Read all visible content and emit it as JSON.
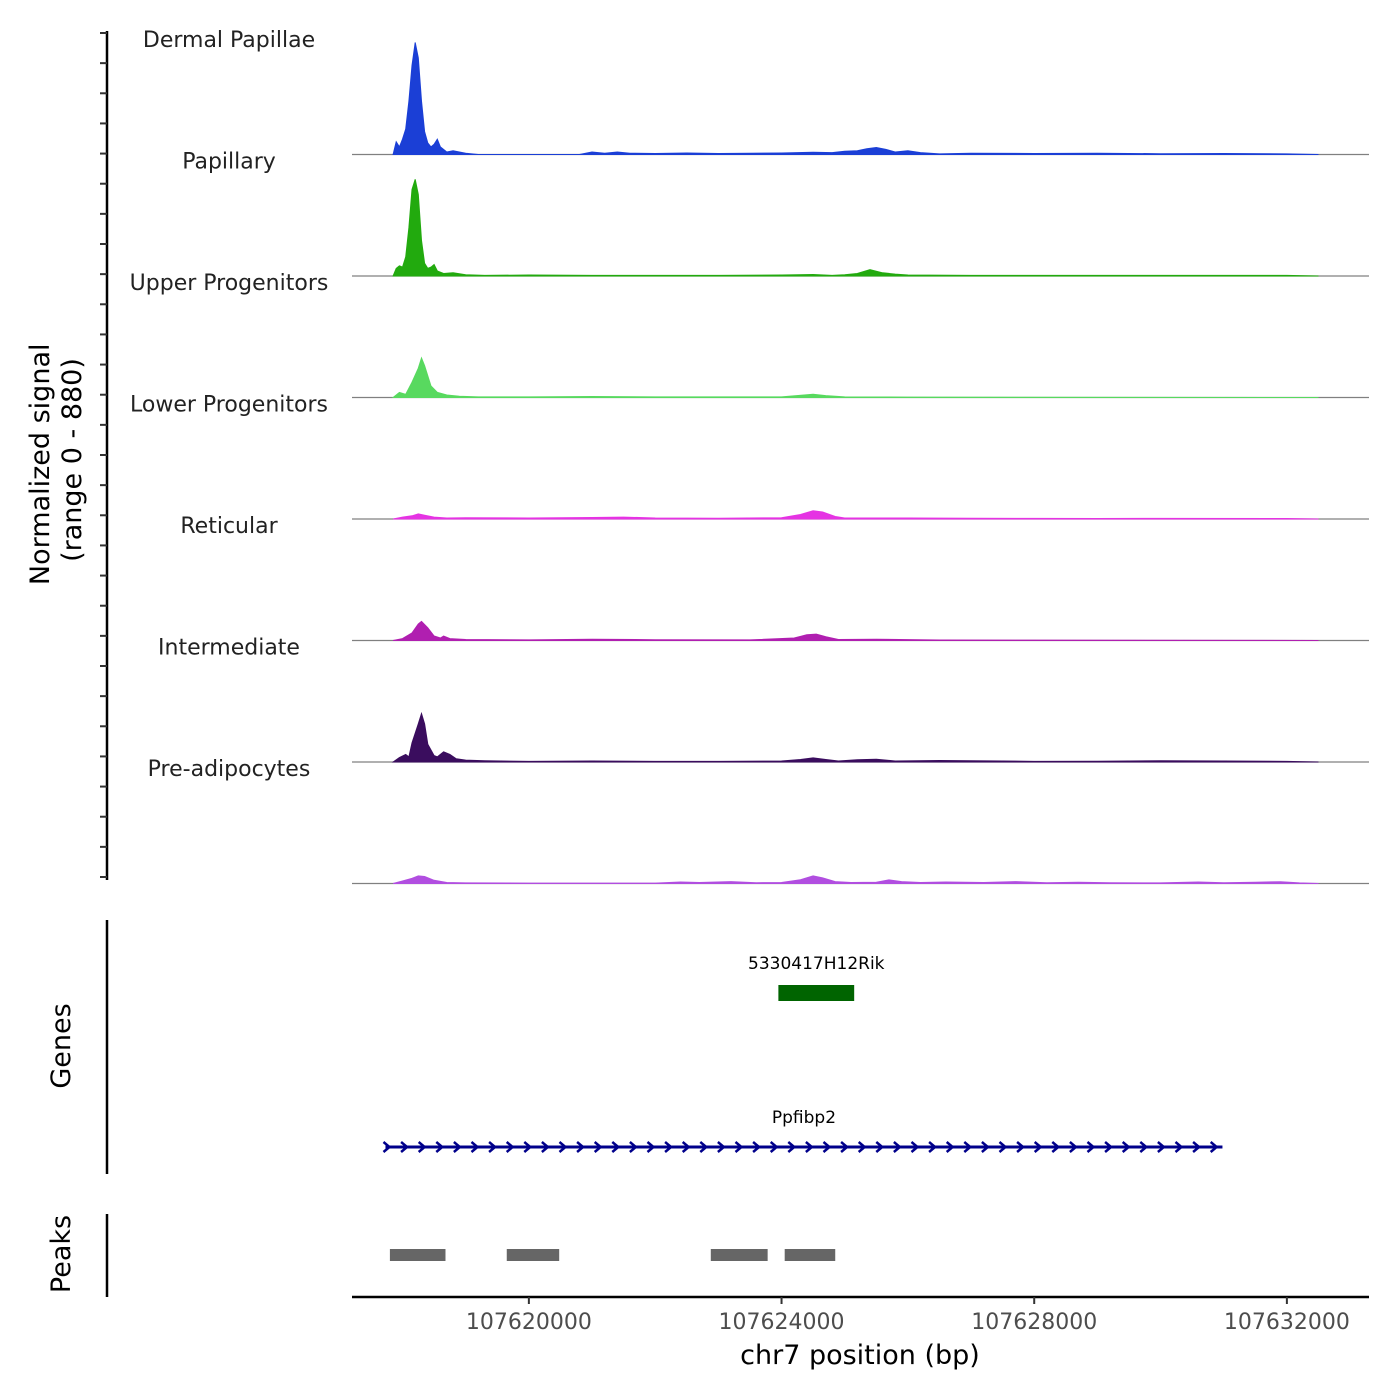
{
  "chart_data": {
    "type": "area",
    "title": "",
    "ylabel": "Normalized signal\n(range 0 - 880)",
    "ylabel_lines": [
      "Normalized signal",
      "(range 0 - 880)"
    ],
    "y_range": [
      0,
      880
    ],
    "xlabel": "chr7 position (bp)",
    "xlim": [
      107617200,
      107633300
    ],
    "x_ticks": [
      107620000,
      107624000,
      107628000,
      107632000
    ],
    "x_tick_labels": [
      "107620000",
      "107624000",
      "107628000",
      "107632000"
    ],
    "series": [
      {
        "name": "Dermal Papillae",
        "color": "#1b3fd6",
        "points": [
          [
            107617850,
            0
          ],
          [
            107617900,
            100
          ],
          [
            107617950,
            60
          ],
          [
            107618000,
            120
          ],
          [
            107618050,
            200
          ],
          [
            107618100,
            420
          ],
          [
            107618150,
            700
          ],
          [
            107618200,
            880
          ],
          [
            107618250,
            760
          ],
          [
            107618300,
            420
          ],
          [
            107618350,
            180
          ],
          [
            107618400,
            90
          ],
          [
            107618450,
            60
          ],
          [
            107618500,
            80
          ],
          [
            107618550,
            120
          ],
          [
            107618600,
            60
          ],
          [
            107618700,
            20
          ],
          [
            107618800,
            30
          ],
          [
            107619000,
            10
          ],
          [
            107619200,
            0
          ],
          [
            107620800,
            0
          ],
          [
            107621000,
            20
          ],
          [
            107621200,
            10
          ],
          [
            107621400,
            20
          ],
          [
            107621600,
            10
          ],
          [
            107622000,
            8
          ],
          [
            107622500,
            12
          ],
          [
            107623000,
            8
          ],
          [
            107623500,
            10
          ],
          [
            107624000,
            12
          ],
          [
            107624500,
            18
          ],
          [
            107624800,
            15
          ],
          [
            107625000,
            25
          ],
          [
            107625200,
            30
          ],
          [
            107625350,
            45
          ],
          [
            107625500,
            55
          ],
          [
            107625650,
            40
          ],
          [
            107625800,
            20
          ],
          [
            107626000,
            30
          ],
          [
            107626200,
            15
          ],
          [
            107626500,
            5
          ],
          [
            107627000,
            10
          ],
          [
            107628000,
            8
          ],
          [
            107629000,
            10
          ],
          [
            107630000,
            6
          ],
          [
            107631000,
            8
          ],
          [
            107632000,
            5
          ],
          [
            107632500,
            0
          ]
        ]
      },
      {
        "name": "Papillary",
        "color": "#22aa0e",
        "points": [
          [
            107617850,
            0
          ],
          [
            107617900,
            60
          ],
          [
            107617950,
            80
          ],
          [
            107618000,
            70
          ],
          [
            107618050,
            150
          ],
          [
            107618100,
            380
          ],
          [
            107618150,
            680
          ],
          [
            107618200,
            760
          ],
          [
            107618250,
            640
          ],
          [
            107618300,
            280
          ],
          [
            107618350,
            100
          ],
          [
            107618400,
            60
          ],
          [
            107618450,
            70
          ],
          [
            107618500,
            90
          ],
          [
            107618550,
            40
          ],
          [
            107618650,
            20
          ],
          [
            107618800,
            25
          ],
          [
            107619000,
            10
          ],
          [
            107619300,
            5
          ],
          [
            107620000,
            8
          ],
          [
            107621000,
            5
          ],
          [
            107622000,
            5
          ],
          [
            107623000,
            5
          ],
          [
            107624000,
            8
          ],
          [
            107624500,
            12
          ],
          [
            107624800,
            5
          ],
          [
            107625000,
            10
          ],
          [
            107625200,
            20
          ],
          [
            107625400,
            50
          ],
          [
            107625600,
            25
          ],
          [
            107625800,
            15
          ],
          [
            107626000,
            8
          ],
          [
            107627000,
            5
          ],
          [
            107628000,
            5
          ],
          [
            107630000,
            5
          ],
          [
            107632000,
            5
          ],
          [
            107632500,
            0
          ]
        ]
      },
      {
        "name": "Upper Progenitors",
        "color": "#58d95f",
        "points": [
          [
            107617850,
            0
          ],
          [
            107617950,
            40
          ],
          [
            107618050,
            25
          ],
          [
            107618150,
            120
          ],
          [
            107618250,
            230
          ],
          [
            107618300,
            310
          ],
          [
            107618350,
            250
          ],
          [
            107618450,
            90
          ],
          [
            107618550,
            40
          ],
          [
            107618700,
            20
          ],
          [
            107618900,
            10
          ],
          [
            107619200,
            5
          ],
          [
            107620000,
            5
          ],
          [
            107621000,
            8
          ],
          [
            107622000,
            5
          ],
          [
            107624000,
            5
          ],
          [
            107624500,
            25
          ],
          [
            107624700,
            15
          ],
          [
            107625000,
            5
          ],
          [
            107626000,
            3
          ],
          [
            107632500,
            0
          ]
        ]
      },
      {
        "name": "Lower Progenitors",
        "color": "#e533e3",
        "points": [
          [
            107617850,
            0
          ],
          [
            107618000,
            15
          ],
          [
            107618150,
            25
          ],
          [
            107618250,
            40
          ],
          [
            107618350,
            30
          ],
          [
            107618500,
            15
          ],
          [
            107618700,
            8
          ],
          [
            107619000,
            10
          ],
          [
            107620000,
            8
          ],
          [
            107621000,
            12
          ],
          [
            107621500,
            15
          ],
          [
            107622000,
            8
          ],
          [
            107623000,
            6
          ],
          [
            107624000,
            10
          ],
          [
            107624300,
            35
          ],
          [
            107624500,
            65
          ],
          [
            107624650,
            55
          ],
          [
            107624850,
            20
          ],
          [
            107625000,
            8
          ],
          [
            107626000,
            8
          ],
          [
            107627000,
            6
          ],
          [
            107628000,
            5
          ],
          [
            107629000,
            4
          ],
          [
            107630000,
            5
          ],
          [
            107632000,
            4
          ],
          [
            107632500,
            0
          ]
        ]
      },
      {
        "name": "Reticular",
        "color": "#b01fb0",
        "points": [
          [
            107617850,
            0
          ],
          [
            107618000,
            15
          ],
          [
            107618150,
            60
          ],
          [
            107618250,
            130
          ],
          [
            107618300,
            150
          ],
          [
            107618400,
            100
          ],
          [
            107618500,
            35
          ],
          [
            107618600,
            20
          ],
          [
            107618650,
            35
          ],
          [
            107618750,
            15
          ],
          [
            107619000,
            8
          ],
          [
            107620000,
            5
          ],
          [
            107621000,
            10
          ],
          [
            107622000,
            6
          ],
          [
            107623500,
            5
          ],
          [
            107624200,
            20
          ],
          [
            107624400,
            45
          ],
          [
            107624550,
            50
          ],
          [
            107624700,
            30
          ],
          [
            107624900,
            8
          ],
          [
            107625500,
            10
          ],
          [
            107626500,
            4
          ],
          [
            107628000,
            3
          ],
          [
            107632500,
            0
          ]
        ]
      },
      {
        "name": "Intermediate",
        "color": "#3a0d5e",
        "points": [
          [
            107617850,
            0
          ],
          [
            107617950,
            35
          ],
          [
            107618050,
            60
          ],
          [
            107618100,
            40
          ],
          [
            107618150,
            150
          ],
          [
            107618250,
            300
          ],
          [
            107618300,
            380
          ],
          [
            107618350,
            300
          ],
          [
            107618400,
            140
          ],
          [
            107618500,
            50
          ],
          [
            107618550,
            40
          ],
          [
            107618650,
            80
          ],
          [
            107618750,
            60
          ],
          [
            107618850,
            25
          ],
          [
            107619000,
            15
          ],
          [
            107619300,
            10
          ],
          [
            107620000,
            5
          ],
          [
            107621000,
            8
          ],
          [
            107622000,
            5
          ],
          [
            107623000,
            5
          ],
          [
            107624000,
            8
          ],
          [
            107624300,
            20
          ],
          [
            107624500,
            32
          ],
          [
            107624700,
            20
          ],
          [
            107624900,
            8
          ],
          [
            107625200,
            18
          ],
          [
            107625500,
            22
          ],
          [
            107625800,
            8
          ],
          [
            107626500,
            12
          ],
          [
            107627500,
            8
          ],
          [
            107628000,
            5
          ],
          [
            107629000,
            6
          ],
          [
            107630000,
            10
          ],
          [
            107631000,
            8
          ],
          [
            107632000,
            5
          ],
          [
            107632500,
            0
          ]
        ]
      },
      {
        "name": "Pre-adipocytes",
        "color": "#b14ee0",
        "points": [
          [
            107617850,
            0
          ],
          [
            107618000,
            20
          ],
          [
            107618150,
            40
          ],
          [
            107618250,
            60
          ],
          [
            107618350,
            55
          ],
          [
            107618500,
            25
          ],
          [
            107618700,
            8
          ],
          [
            107619000,
            5
          ],
          [
            107620000,
            3
          ],
          [
            107622000,
            3
          ],
          [
            107622400,
            12
          ],
          [
            107622700,
            8
          ],
          [
            107623200,
            15
          ],
          [
            107623600,
            6
          ],
          [
            107624000,
            8
          ],
          [
            107624300,
            30
          ],
          [
            107624500,
            60
          ],
          [
            107624650,
            45
          ],
          [
            107624850,
            15
          ],
          [
            107625100,
            8
          ],
          [
            107625500,
            10
          ],
          [
            107625700,
            28
          ],
          [
            107625900,
            15
          ],
          [
            107626200,
            8
          ],
          [
            107626600,
            12
          ],
          [
            107627200,
            8
          ],
          [
            107627700,
            15
          ],
          [
            107628200,
            6
          ],
          [
            107628700,
            10
          ],
          [
            107629200,
            6
          ],
          [
            107630000,
            5
          ],
          [
            107630600,
            12
          ],
          [
            107631000,
            6
          ],
          [
            107631500,
            10
          ],
          [
            107631900,
            14
          ],
          [
            107632200,
            5
          ],
          [
            107632500,
            0
          ]
        ]
      }
    ],
    "genes": [
      {
        "name": "5330417H12Rik",
        "start": 107623950,
        "end": 107625150,
        "strand": "",
        "color": "#006400",
        "row": 1
      },
      {
        "name": "Ppfibp2",
        "start": 107617730,
        "end": 107630980,
        "strand": "+",
        "color": "#00008b",
        "row": 2
      }
    ],
    "peaks": [
      {
        "start": 107617800,
        "end": 107618680
      },
      {
        "start": 107619650,
        "end": 107620480
      },
      {
        "start": 107622880,
        "end": 107623780
      },
      {
        "start": 107624050,
        "end": 107624850
      }
    ],
    "peak_color": "#666666",
    "panel_titles": {
      "genes": "Genes",
      "peaks": "Peaks"
    }
  }
}
